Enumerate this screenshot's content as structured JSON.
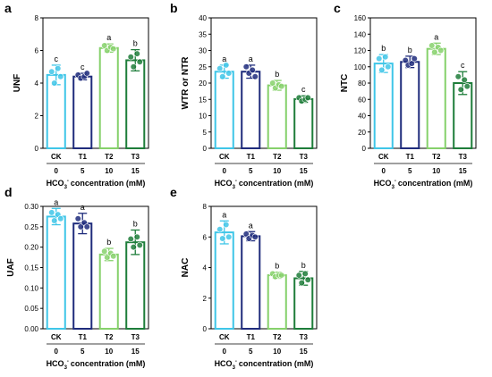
{
  "colors": {
    "CK": "#3fc6e8",
    "T1": "#1f2c7c",
    "T2": "#86d16b",
    "T3": "#1e7d3a"
  },
  "chart_data": [
    {
      "panel": "a",
      "type": "bar",
      "ylabel": "UNF",
      "ylim": [
        0,
        8
      ],
      "yticks": [
        "0",
        "2",
        "4",
        "6",
        "8"
      ],
      "ytick_values": [
        0,
        2,
        4,
        6,
        8
      ],
      "categories": [
        "CK",
        "T1",
        "T2",
        "T3"
      ],
      "concentrations": [
        "0",
        "5",
        "10",
        "15"
      ],
      "xlabel_prefix": "HCO",
      "xlabel_sub": "3",
      "xlabel_sup": "-",
      "xlabel_suffix": "concentration (mM)",
      "values": [
        4.5,
        4.4,
        6.15,
        5.4
      ],
      "errors": [
        0.6,
        0.2,
        0.25,
        0.65
      ],
      "letters": [
        "c",
        "c",
        "a",
        "b"
      ],
      "points": [
        [
          4.7,
          4.0,
          4.9,
          4.4
        ],
        [
          4.5,
          4.3,
          4.4,
          4.6
        ],
        [
          6.3,
          6.0,
          6.2,
          6.1
        ],
        [
          5.6,
          5.0,
          5.8,
          5.3
        ]
      ]
    },
    {
      "panel": "b",
      "type": "bar",
      "ylabel": "WTR or NTR",
      "ylim": [
        0,
        40
      ],
      "yticks": [
        "0",
        "5",
        "10",
        "15",
        "20",
        "25",
        "30",
        "35",
        "40"
      ],
      "ytick_values": [
        0,
        5,
        10,
        15,
        20,
        25,
        30,
        35,
        40
      ],
      "categories": [
        "CK",
        "T1",
        "T2",
        "T3"
      ],
      "concentrations": [
        "0",
        "5",
        "10",
        "15"
      ],
      "xlabel_prefix": "HCO",
      "xlabel_sub": "3",
      "xlabel_sup": "-",
      "xlabel_suffix": "concentration (mM)",
      "values": [
        23.5,
        23.5,
        19.3,
        15.1
      ],
      "errors": [
        2.0,
        2.0,
        1.5,
        1.0
      ],
      "letters": [
        "a",
        "a",
        "b",
        "c"
      ],
      "points": [
        [
          24.5,
          22.0,
          25.5,
          23.0
        ],
        [
          25.0,
          23.0,
          24.0,
          22.0
        ],
        [
          20.0,
          18.5,
          19.5,
          19.0
        ],
        [
          15.5,
          14.5,
          15.0,
          15.5
        ]
      ]
    },
    {
      "panel": "c",
      "type": "bar",
      "ylabel": "NTC",
      "ylim": [
        0,
        160
      ],
      "yticks": [
        "0",
        "20",
        "40",
        "60",
        "80",
        "100",
        "120",
        "140",
        "160"
      ],
      "ytick_values": [
        0,
        20,
        40,
        60,
        80,
        100,
        120,
        140,
        160
      ],
      "categories": [
        "CK",
        "T1",
        "T2",
        "T3"
      ],
      "concentrations": [
        "0",
        "5",
        "10",
        "15"
      ],
      "xlabel_prefix": "HCO",
      "xlabel_sub": "3",
      "xlabel_sup": "-",
      "xlabel_suffix": "concentration (mM)",
      "values": [
        104,
        106,
        122,
        80
      ],
      "errors": [
        11,
        7,
        7,
        14
      ],
      "letters": [
        "b",
        "b",
        "a",
        "c"
      ],
      "points": [
        [
          110,
          96,
          112,
          100
        ],
        [
          108,
          102,
          104,
          110
        ],
        [
          126,
          118,
          124,
          120
        ],
        [
          88,
          72,
          84,
          76
        ]
      ]
    },
    {
      "panel": "d",
      "type": "bar",
      "ylabel": "UAF",
      "ylim": [
        0,
        0.3
      ],
      "yticks": [
        "0.00",
        "0.05",
        "0.10",
        "0.15",
        "0.20",
        "0.25",
        "0.30"
      ],
      "ytick_values": [
        0,
        0.05,
        0.1,
        0.15,
        0.2,
        0.25,
        0.3
      ],
      "categories": [
        "CK",
        "T1",
        "T2",
        "T3"
      ],
      "concentrations": [
        "0",
        "5",
        "10",
        "15"
      ],
      "xlabel_prefix": "HCO",
      "xlabel_sub": "3",
      "xlabel_sup": "-",
      "xlabel_suffix": "concentration (mM)",
      "values": [
        0.275,
        0.258,
        0.182,
        0.212
      ],
      "errors": [
        0.02,
        0.025,
        0.015,
        0.03
      ],
      "letters": [
        "a",
        "a",
        "b",
        "b"
      ],
      "points": [
        [
          0.285,
          0.265,
          0.28,
          0.27
        ],
        [
          0.27,
          0.25,
          0.26,
          0.25
        ],
        [
          0.19,
          0.175,
          0.185,
          0.178
        ],
        [
          0.22,
          0.2,
          0.225,
          0.205
        ]
      ]
    },
    {
      "panel": "e",
      "type": "bar",
      "ylabel": "NAC",
      "ylim": [
        0,
        8
      ],
      "yticks": [
        "0",
        "2",
        "4",
        "6",
        "8"
      ],
      "ytick_values": [
        0,
        2,
        4,
        6,
        8
      ],
      "categories": [
        "CK",
        "T1",
        "T2",
        "T3"
      ],
      "concentrations": [
        "0",
        "5",
        "10",
        "15"
      ],
      "xlabel_prefix": "HCO",
      "xlabel_sub": "3",
      "xlabel_sup": "-",
      "xlabel_suffix": "concentration (mM)",
      "values": [
        6.3,
        6.05,
        3.5,
        3.3
      ],
      "errors": [
        0.75,
        0.3,
        0.2,
        0.45
      ],
      "letters": [
        "a",
        "a",
        "b",
        "b"
      ],
      "points": [
        [
          6.5,
          5.9,
          6.8,
          6.0
        ],
        [
          6.2,
          5.9,
          6.1,
          6.0
        ],
        [
          3.6,
          3.4,
          3.5,
          3.5
        ],
        [
          3.5,
          3.0,
          3.6,
          3.2
        ]
      ]
    }
  ]
}
